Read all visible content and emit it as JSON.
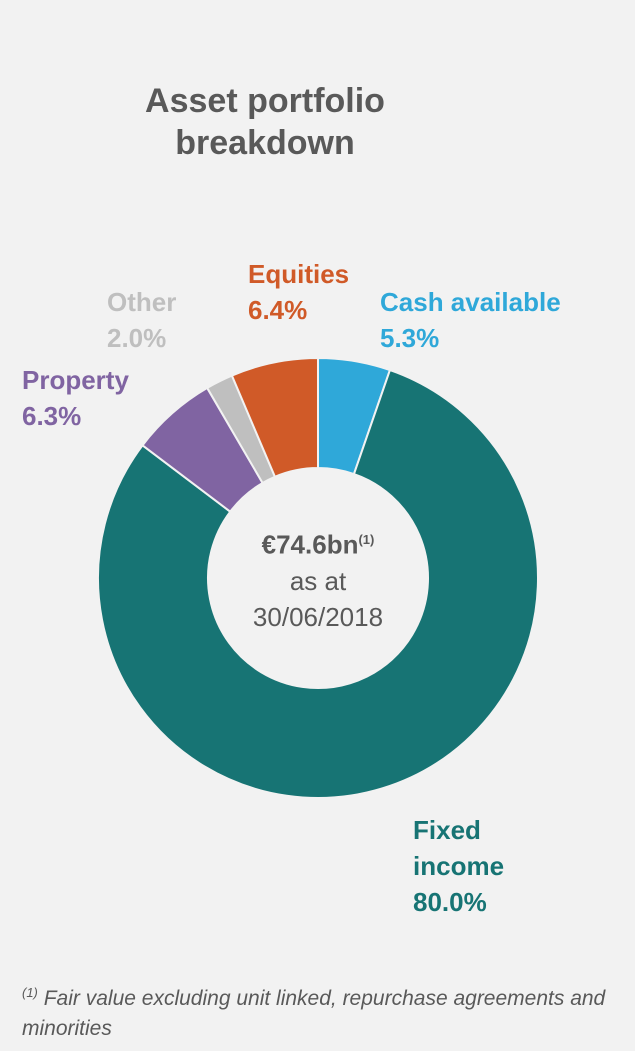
{
  "chart_data": {
    "type": "donut",
    "title": "Asset portfolio breakdown",
    "categories": [
      "Cash available",
      "Fixed income",
      "Property",
      "Other",
      "Equities"
    ],
    "values": [
      5.3,
      80.0,
      6.3,
      2.0,
      6.4
    ],
    "value_labels": [
      "5.3%",
      "80.0%",
      "6.3%",
      "2.0%",
      "6.4%"
    ],
    "colors": [
      "#2fa8d9",
      "#177474",
      "#8064a2",
      "#bfbfbf",
      "#d05a28"
    ],
    "center_value": "€74.6bn",
    "center_note": "(1)",
    "center_line1": "as at",
    "center_line2": "30/06/2018",
    "footnote_mark": "(1)",
    "footnote": "Fair value excluding unit linked, repurchase agreements and minorities"
  }
}
